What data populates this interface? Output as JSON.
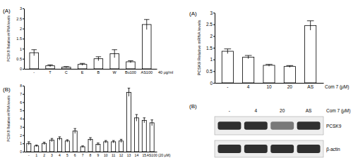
{
  "chart_data": [
    {
      "type": "bar",
      "title": "(A)",
      "ylabel": "PCSK9 Relative mRNA levels",
      "xlabel": "40 μg/ml",
      "categories": [
        "-",
        "T",
        "C",
        "E",
        "B",
        "W",
        "Bu100",
        "AS100"
      ],
      "values": [
        0.8,
        0.15,
        0.08,
        0.22,
        0.5,
        0.75,
        0.35,
        2.2
      ],
      "errors": [
        0.15,
        0.05,
        0.03,
        0.05,
        0.1,
        0.2,
        0.05,
        0.25
      ],
      "color": "#ffffff",
      "ylim": [
        0,
        3
      ],
      "yticks": [
        0,
        0.5,
        1,
        1.5,
        2,
        2.5,
        3
      ],
      "grid": false
    },
    {
      "type": "bar",
      "title": "(B)",
      "ylabel": "PCSK9 Relative mRNA levels",
      "xlabel": "(20 μM)",
      "categories": [
        "-",
        "1",
        "2",
        "3",
        "4",
        "5",
        "6",
        "7",
        "8",
        "9",
        "10",
        "11",
        "12",
        "13",
        "14",
        "15",
        "AS100"
      ],
      "values": [
        1.0,
        0.7,
        1.0,
        1.4,
        1.6,
        1.3,
        2.5,
        0.6,
        1.5,
        0.9,
        1.2,
        1.2,
        1.3,
        7.2,
        4.1,
        3.8,
        3.5
      ],
      "errors": [
        0.2,
        0.1,
        0.15,
        0.2,
        0.2,
        0.15,
        0.3,
        0.1,
        0.2,
        0.15,
        0.15,
        0.15,
        0.2,
        0.5,
        0.4,
        0.3,
        0.35
      ],
      "color": "#ffffff",
      "ylim": [
        0,
        8
      ],
      "yticks": [
        0,
        1,
        2,
        3,
        4,
        5,
        6,
        7,
        8
      ],
      "grid": false
    },
    {
      "type": "bar",
      "title": "(A)",
      "ylabel": "PCSK9 Relative mRNA levels",
      "xlabel": "Com 7 (μM)",
      "categories": [
        "-",
        "4",
        "10",
        "20",
        "AS"
      ],
      "values": [
        1.35,
        1.1,
        0.75,
        0.7,
        2.45
      ],
      "errors": [
        0.1,
        0.07,
        0.04,
        0.04,
        0.2
      ],
      "color": "#ffffff",
      "ylim": [
        0,
        3
      ],
      "yticks": [
        0,
        0.5,
        1,
        1.5,
        2,
        2.5,
        3
      ],
      "grid": false
    }
  ],
  "blot": {
    "title": "(B)",
    "lanes": [
      "-",
      "4",
      "20",
      "AS"
    ],
    "xlabel": "Com 7 (μM)",
    "rows": [
      "PCSK9",
      "β-actin"
    ]
  }
}
